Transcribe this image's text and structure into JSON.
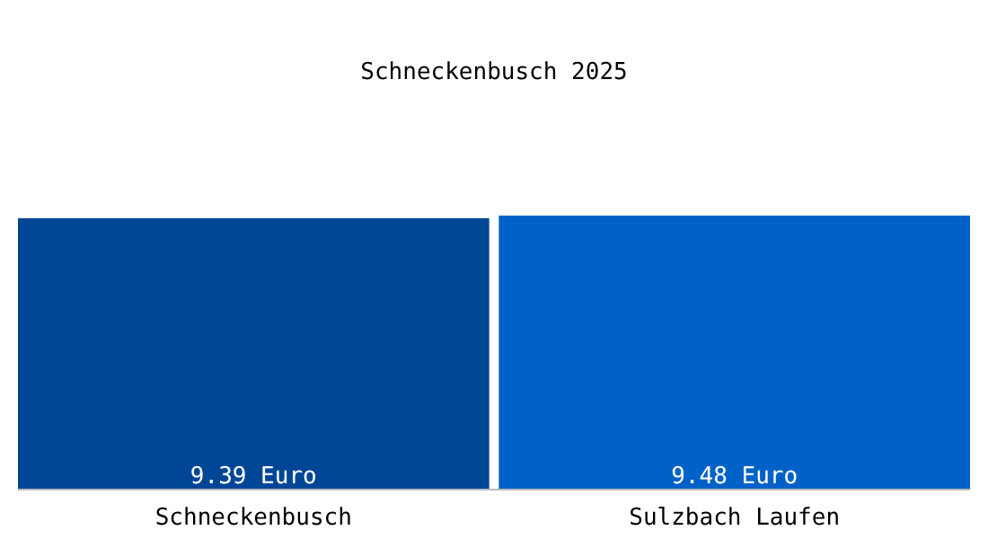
{
  "chart_data": {
    "type": "bar",
    "title": "Schneckenbusch 2025",
    "categories": [
      "Schneckenbusch",
      "Sulzbach Laufen"
    ],
    "values": [
      9.39,
      9.48
    ],
    "colors": [
      "#004696",
      "#0062c8"
    ],
    "value_labels": [
      "9.39 Euro",
      "9.48 Euro"
    ]
  }
}
